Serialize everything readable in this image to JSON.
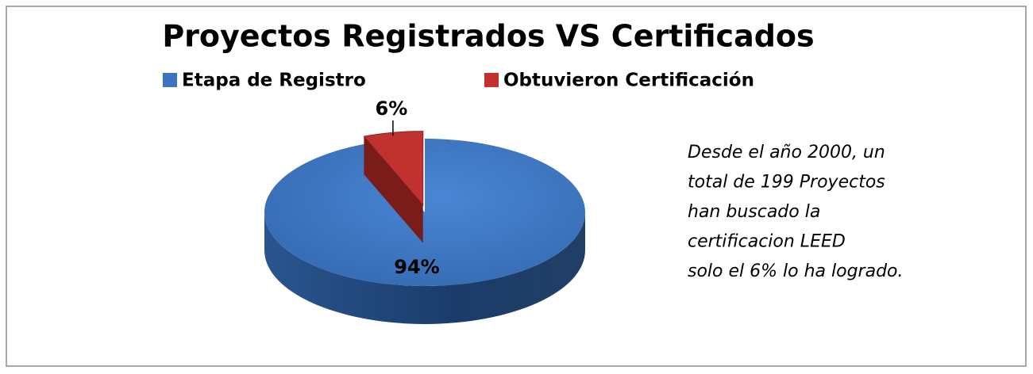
{
  "chart_data": {
    "type": "pie",
    "title": "Proyectos Registrados VS Certificados",
    "categories": [
      "Etapa de Registro",
      "Obtuvieron Certificación"
    ],
    "values": [
      94,
      6
    ],
    "value_labels": [
      "94%",
      "6%"
    ],
    "colors": [
      "#3b74c2",
      "#c0312f"
    ],
    "legend": "top",
    "annotation": [
      "Desde el año 2000, un",
      "total de 199 Proyectos",
      "han buscado la",
      "certificacion LEED",
      "solo el 6% lo ha logrado."
    ]
  }
}
